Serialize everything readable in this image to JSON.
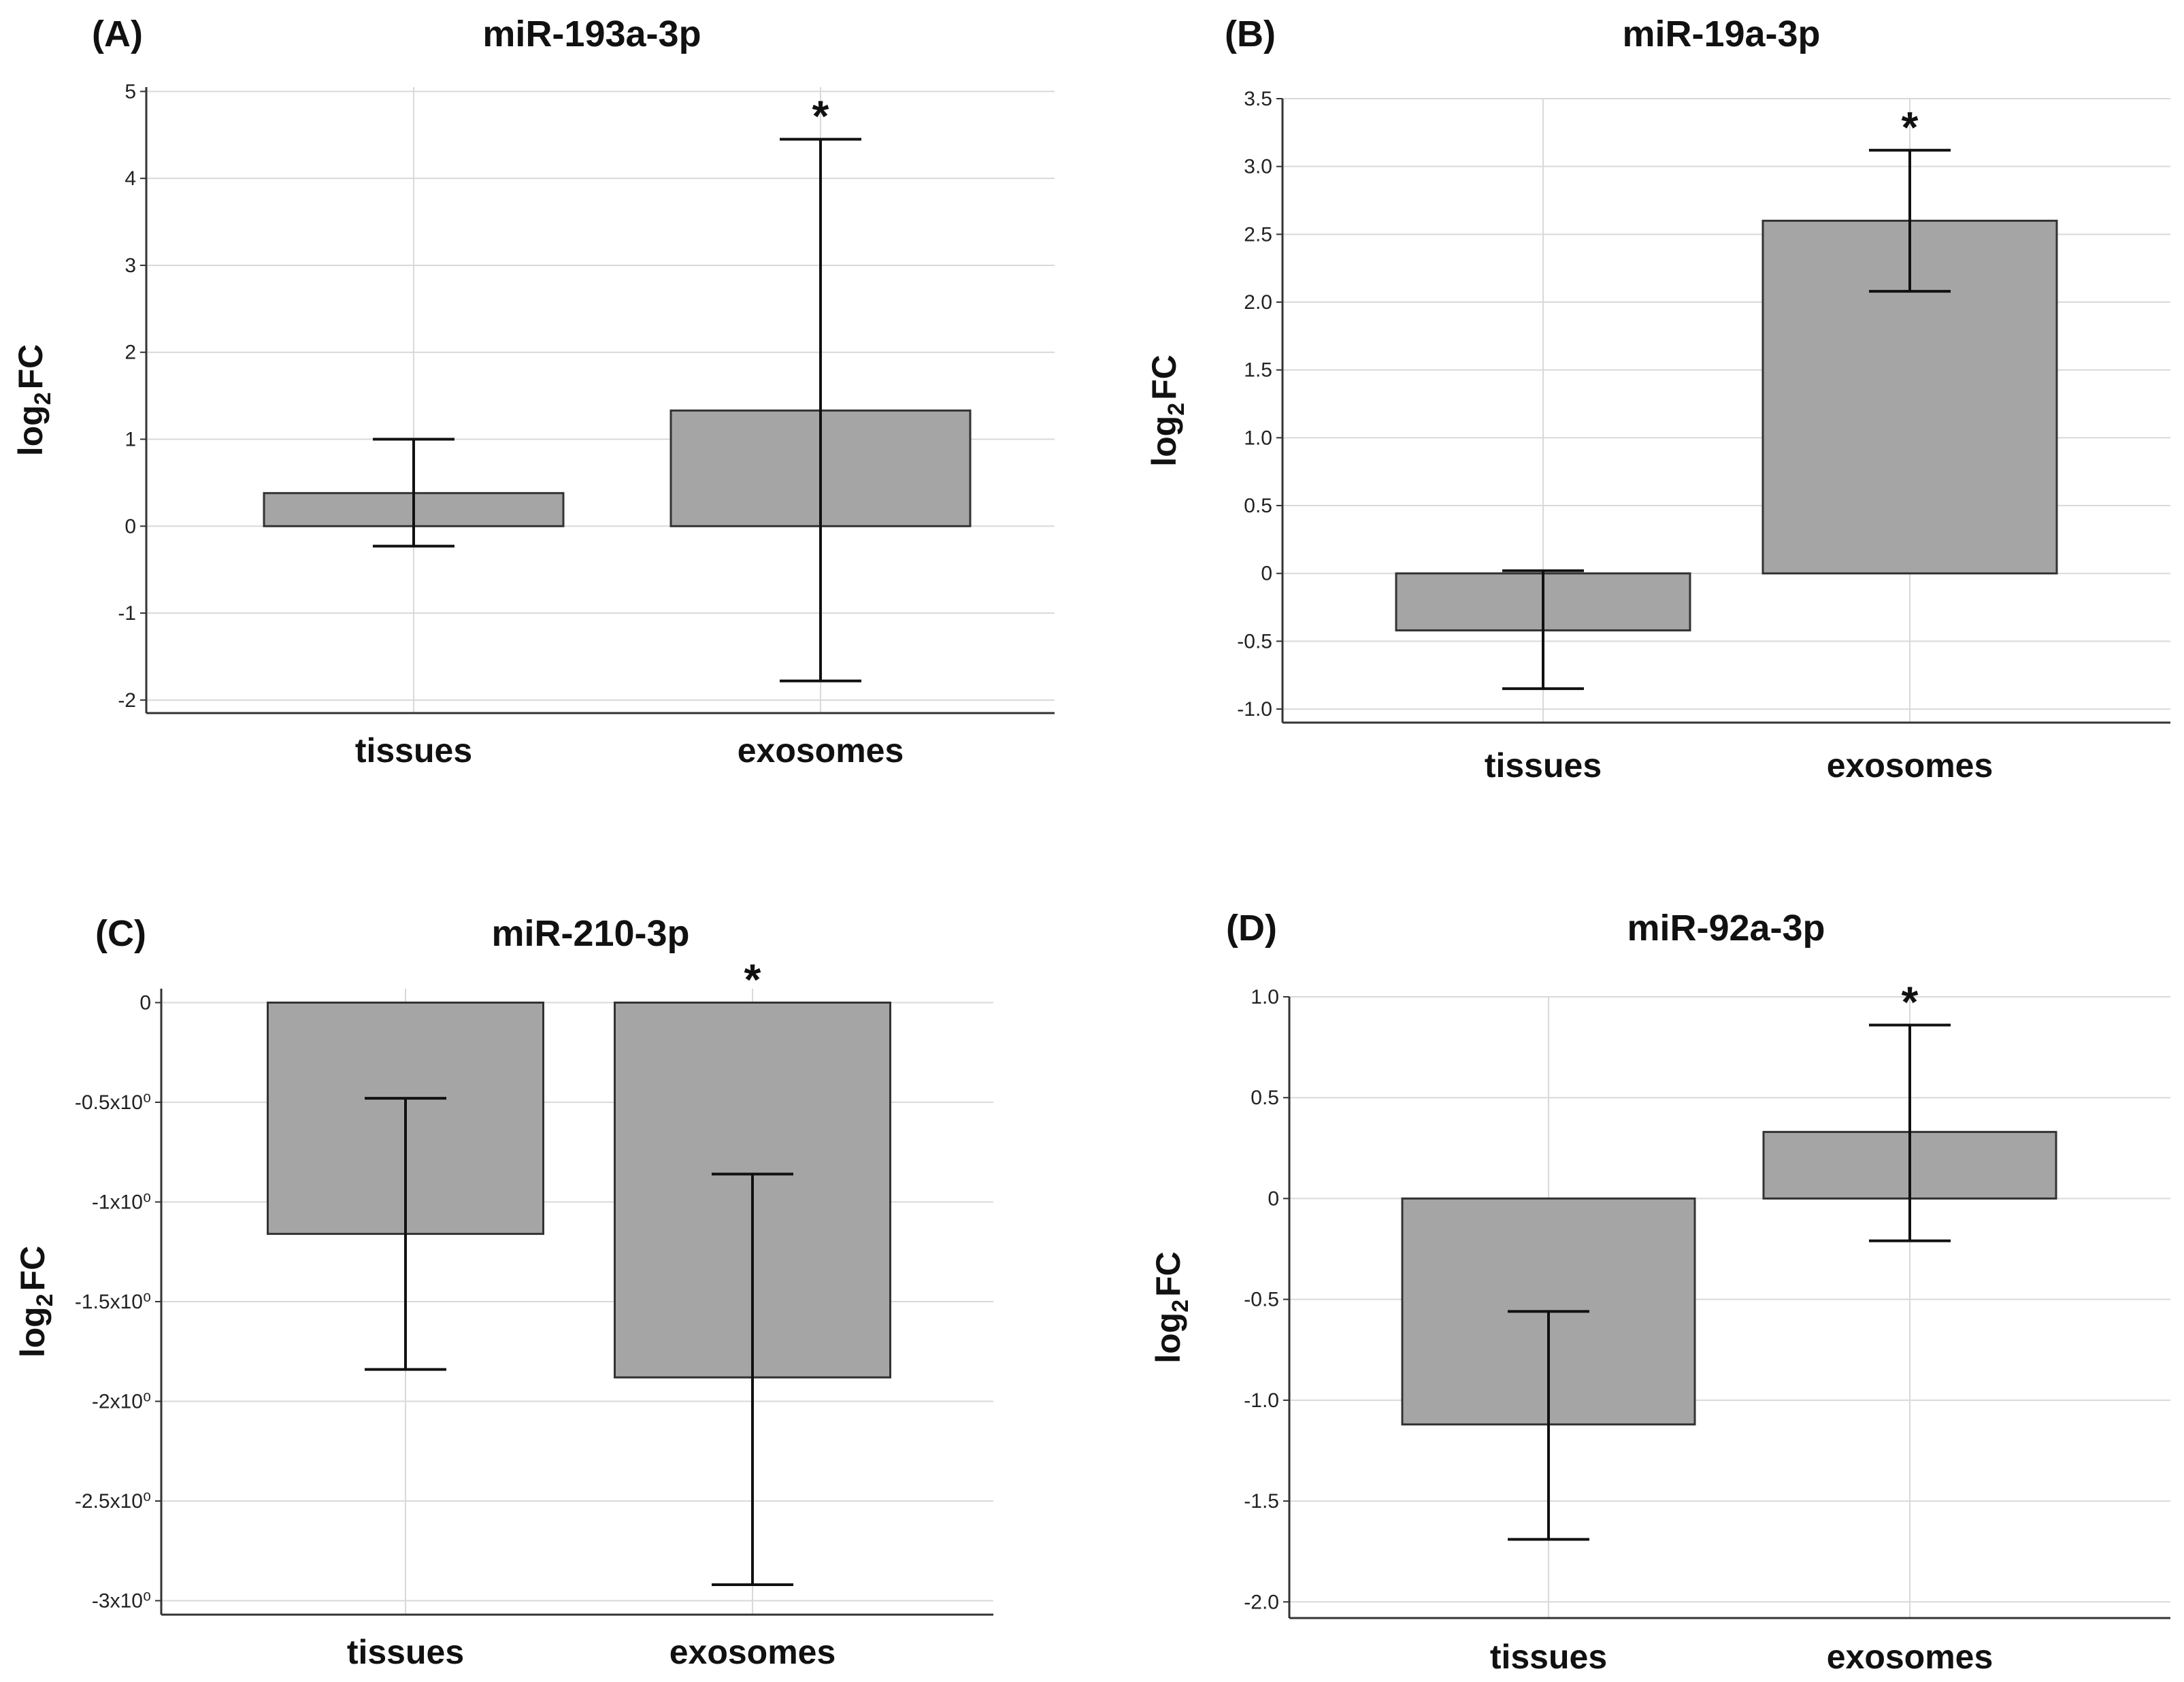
{
  "colors": {
    "bar": "#a5a5a5",
    "bar_edge": "#333333",
    "grid": "#d9d9d9",
    "axis": "#333333"
  },
  "chart_data": [
    {
      "type": "bar",
      "panel": "(A)",
      "title": "miR-193a-3p",
      "ylabel": "log2FC",
      "categories": [
        "tissues",
        "exosomes"
      ],
      "values": [
        0.38,
        1.33
      ],
      "error_low": [
        -0.23,
        -1.78
      ],
      "error_high": [
        1.0,
        4.45
      ],
      "significance": [
        "",
        "*"
      ],
      "yticks": [
        "-2",
        "-1",
        "0",
        "1",
        "2",
        "3",
        "4",
        "5"
      ],
      "ylim": [
        -2.15,
        5.05
      ],
      "grid": true
    },
    {
      "type": "bar",
      "panel": "(B)",
      "title": "miR-19a-3p",
      "ylabel": "log2FC",
      "categories": [
        "tissues",
        "exosomes"
      ],
      "values": [
        -0.42,
        2.6
      ],
      "error_low": [
        -0.85,
        2.08
      ],
      "error_high": [
        0.02,
        3.12
      ],
      "significance": [
        "",
        "*"
      ],
      "yticks": [
        "-1.0",
        "-0.5",
        "0",
        "0.5",
        "1.0",
        "1.5",
        "2.0",
        "2.5",
        "3.0",
        "3.5"
      ],
      "ylim": [
        -1.1,
        3.5
      ],
      "grid": true
    },
    {
      "type": "bar",
      "panel": "(C)",
      "title": "miR-210-3p",
      "ylabel": "log2FC",
      "categories": [
        "tissues",
        "exosomes"
      ],
      "values": [
        -1.16,
        -1.88
      ],
      "error_low": [
        -1.84,
        -2.92
      ],
      "error_high": [
        -0.48,
        -0.86
      ],
      "significance": [
        "",
        "*"
      ],
      "yticks": [
        "-3x10⁰",
        "-2.5x10⁰",
        "-2x10⁰",
        "-1.5x10⁰",
        "-1x10⁰",
        "-0.5x10⁰",
        "0"
      ],
      "ylim": [
        -3.07,
        0.07
      ],
      "grid": true
    },
    {
      "type": "bar",
      "panel": "(D)",
      "title": "miR-92a-3p",
      "ylabel": "log2FC",
      "categories": [
        "tissues",
        "exosomes"
      ],
      "values": [
        -1.12,
        0.33
      ],
      "error_low": [
        -1.69,
        -0.21
      ],
      "error_high": [
        -0.56,
        0.86
      ],
      "significance": [
        "",
        "*"
      ],
      "yticks": [
        "-2.0",
        "-1.5",
        "-1.0",
        "-0.5",
        "0",
        "0.5",
        "1.0"
      ],
      "ylim": [
        -2.08,
        1.0
      ],
      "grid": true
    }
  ]
}
